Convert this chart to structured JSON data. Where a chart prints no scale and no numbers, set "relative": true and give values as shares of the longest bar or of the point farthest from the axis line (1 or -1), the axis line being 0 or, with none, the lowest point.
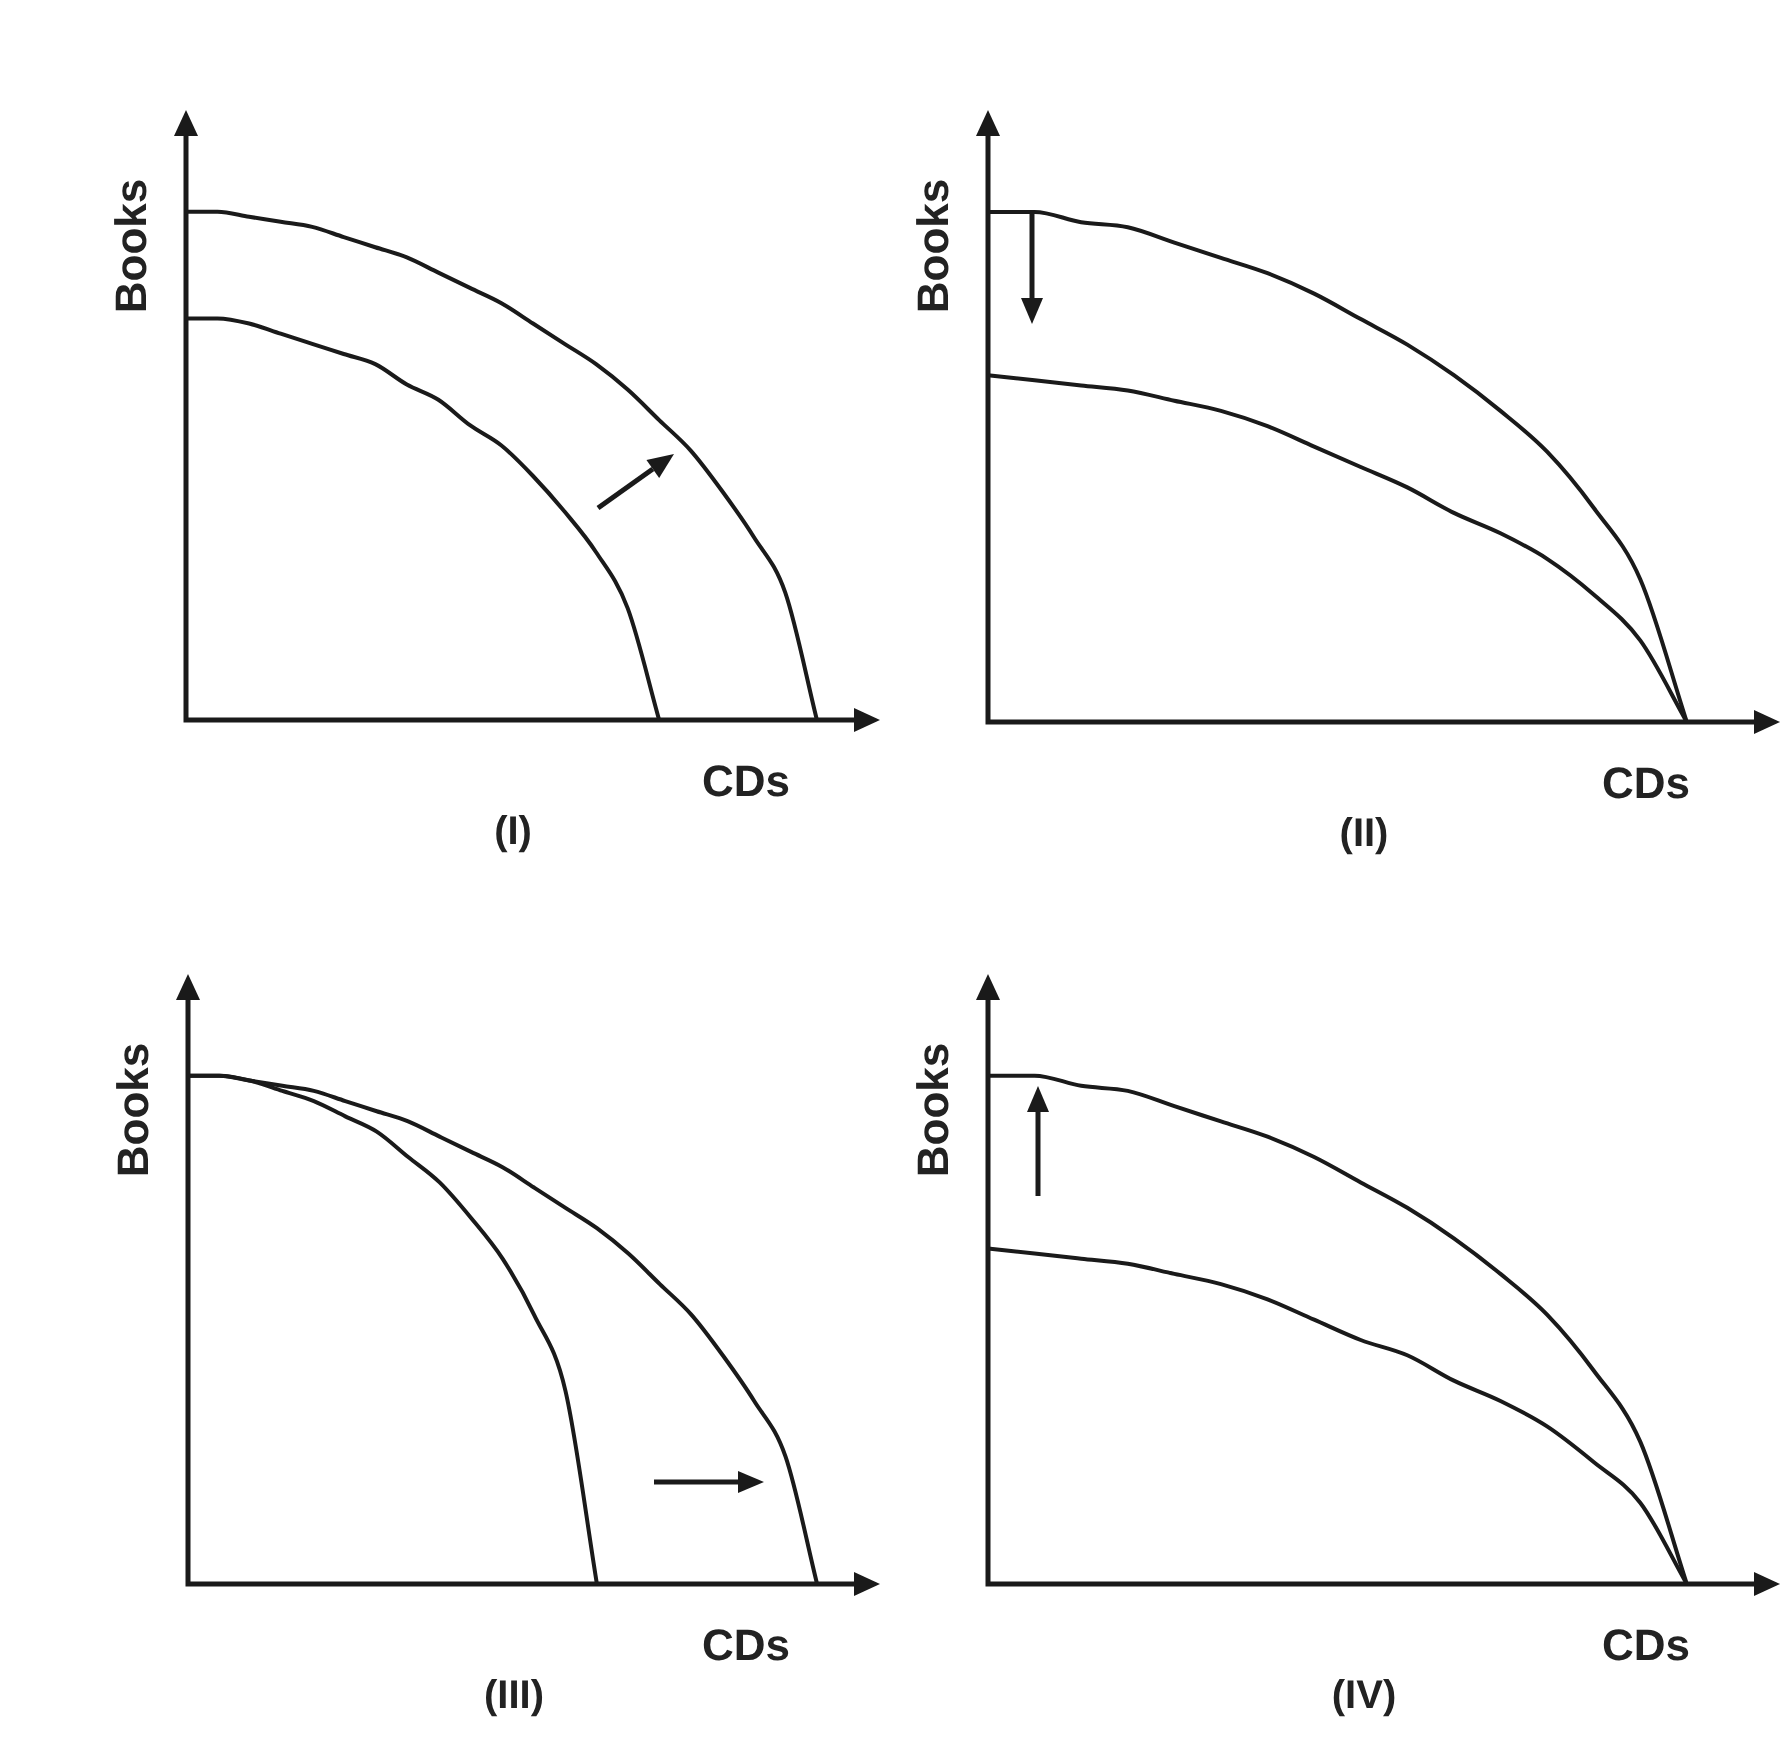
{
  "chart_data": [
    {
      "type": "line",
      "title": "(I)",
      "xlabel": "CDs",
      "ylabel": "Books",
      "relative": true,
      "tick_labels": false,
      "legend": false,
      "marker": "none",
      "categories": [
        null,
        null,
        null,
        null,
        null,
        null,
        null,
        null,
        null,
        null,
        null,
        null,
        null,
        null,
        null,
        null,
        null,
        null,
        null,
        null,
        null,
        null,
        null
      ],
      "series": [
        {
          "color": "#1a1a1a",
          "values": [
            1,
            1.0,
            0.99,
            0.98,
            0.97,
            0.95,
            0.93,
            0.91,
            0.88,
            0.85,
            0.82,
            0.78,
            0.74,
            0.7,
            0.65,
            0.59,
            0.53,
            0.45,
            0.36,
            0.25,
            0,
            null,
            null
          ]
        },
        {
          "color": "#1a1a1a",
          "values": [
            0.79,
            0.79,
            0.78,
            0.76,
            0.74,
            0.72,
            0.7,
            0.66,
            0.63,
            0.58,
            0.54,
            0.48,
            0.41,
            0.33,
            0.22,
            0,
            null,
            null,
            null,
            null,
            null,
            null,
            null
          ]
        }
      ]
    },
    {
      "type": "line",
      "title": "(II)",
      "xlabel": "CDs",
      "ylabel": "Books",
      "relative": true,
      "tick_labels": false,
      "legend": false,
      "marker": "none",
      "categories": [
        null,
        null,
        null,
        null,
        null,
        null,
        null,
        null,
        null,
        null,
        null,
        null,
        null,
        null,
        null,
        null,
        null,
        null
      ],
      "series": [
        {
          "color": "#1a1a1a",
          "values": [
            1,
            1.0,
            0.98,
            0.97,
            0.94,
            0.91,
            0.88,
            0.84,
            0.79,
            0.74,
            0.68,
            0.61,
            0.53,
            0.42,
            0.28,
            0,
            null,
            null
          ]
        },
        {
          "color": "#1a1a1a",
          "values": [
            0.68,
            0.67,
            0.66,
            0.65,
            0.63,
            0.61,
            0.58,
            0.54,
            0.5,
            0.46,
            0.41,
            0.37,
            0.32,
            0.25,
            0.16,
            0,
            null,
            null
          ]
        }
      ]
    },
    {
      "type": "line",
      "title": "(III)",
      "xlabel": "CDs",
      "ylabel": "Books",
      "relative": true,
      "tick_labels": false,
      "legend": false,
      "marker": "none",
      "categories": [
        null,
        null,
        null,
        null,
        null,
        null,
        null,
        null,
        null,
        null,
        null,
        null,
        null,
        null,
        null,
        null,
        null,
        null,
        null,
        null,
        null,
        null,
        null
      ],
      "series": [
        {
          "color": "#1a1a1a",
          "values": [
            1,
            1.0,
            0.99,
            0.98,
            0.97,
            0.95,
            0.93,
            0.91,
            0.88,
            0.85,
            0.82,
            0.78,
            0.74,
            0.7,
            0.65,
            0.59,
            0.53,
            0.45,
            0.36,
            0.25,
            0,
            null,
            null
          ]
        },
        {
          "color": "#1a1a1a",
          "values": [
            1,
            1.0,
            0.99,
            0.97,
            0.95,
            0.92,
            0.89,
            0.84,
            0.79,
            0.72,
            0.64,
            0.53,
            0.38,
            0,
            null,
            null,
            null,
            null,
            null,
            null,
            null,
            null,
            null
          ]
        }
      ]
    },
    {
      "type": "line",
      "title": "(IV)",
      "xlabel": "CDs",
      "ylabel": "Books",
      "relative": true,
      "tick_labels": false,
      "legend": false,
      "marker": "none",
      "categories": [
        null,
        null,
        null,
        null,
        null,
        null,
        null,
        null,
        null,
        null,
        null,
        null,
        null,
        null,
        null,
        null,
        null,
        null
      ],
      "series": [
        {
          "color": "#1a1a1a",
          "values": [
            1,
            1.0,
            0.98,
            0.97,
            0.94,
            0.91,
            0.88,
            0.84,
            0.79,
            0.74,
            0.68,
            0.61,
            0.53,
            0.42,
            0.28,
            0,
            null,
            null
          ]
        },
        {
          "color": "#1a1a1a",
          "values": [
            0.66,
            0.65,
            0.64,
            0.63,
            0.61,
            0.59,
            0.56,
            0.52,
            0.48,
            0.45,
            0.4,
            0.36,
            0.31,
            0.24,
            0.16,
            0,
            null,
            null
          ]
        }
      ]
    }
  ]
}
